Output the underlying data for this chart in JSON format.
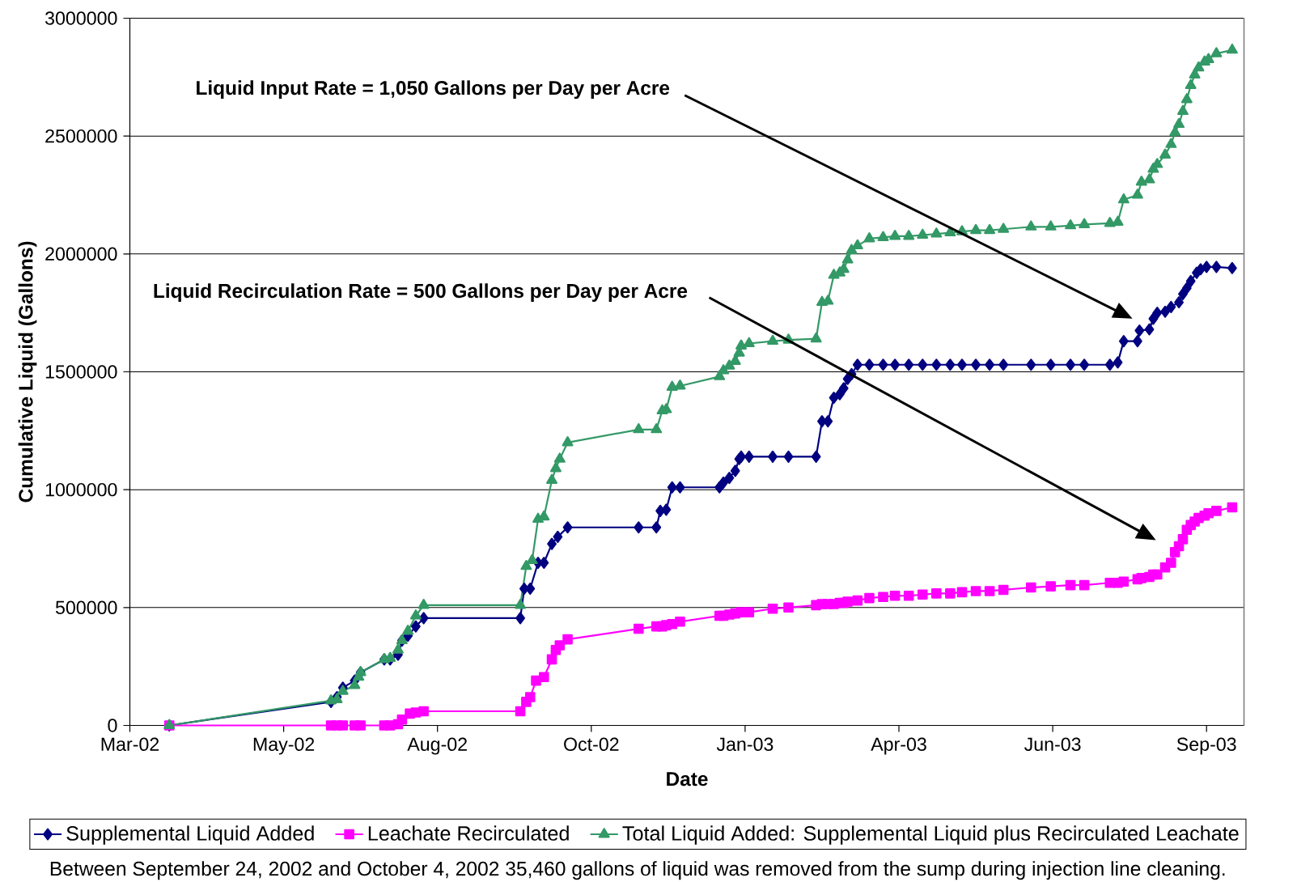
{
  "chart_data": {
    "type": "line",
    "xlabel": "Date",
    "ylabel": "Cumulative Liquid (Gallons)",
    "xlim": [
      "2002-03-10",
      "2003-09-26"
    ],
    "xticks": [
      {
        "value": "2002-03-10",
        "label": "Mar-02"
      },
      {
        "value": "2002-05-27",
        "label": "May-02"
      },
      {
        "value": "2002-08-13",
        "label": "Aug-02"
      },
      {
        "value": "2002-10-30",
        "label": "Oct-02"
      },
      {
        "value": "2003-01-16",
        "label": "Jan-03"
      },
      {
        "value": "2003-04-04",
        "label": "Apr-03"
      },
      {
        "value": "2003-06-21",
        "label": "Jun-03"
      },
      {
        "value": "2003-09-07",
        "label": "Sep-03"
      }
    ],
    "ylim": [
      0,
      3000000
    ],
    "yticks": [
      0,
      500000,
      1000000,
      1500000,
      2000000,
      2500000,
      3000000
    ],
    "grid": "y",
    "legend": "bottom",
    "line_style": "solid",
    "series": [
      {
        "name": "Supplemental Liquid Added",
        "color": "#000080",
        "marker": "diamond",
        "x": [
          "2002-03-30",
          "2002-06-20",
          "2002-06-23",
          "2002-06-26",
          "2002-07-02",
          "2002-07-05",
          "2002-07-17",
          "2002-07-20",
          "2002-07-24",
          "2002-07-26",
          "2002-07-29",
          "2002-08-02",
          "2002-08-06",
          "2002-09-24",
          "2002-09-26",
          "2002-09-29",
          "2002-10-03",
          "2002-10-06",
          "2002-10-10",
          "2002-10-13",
          "2002-10-18",
          "2002-11-23",
          "2002-12-02",
          "2002-12-04",
          "2002-12-07",
          "2002-12-10",
          "2002-12-14",
          "2003-01-03",
          "2003-01-05",
          "2003-01-08",
          "2003-01-11",
          "2003-01-13",
          "2003-01-14",
          "2003-01-18",
          "2003-01-30",
          "2003-02-07",
          "2003-02-21",
          "2003-02-24",
          "2003-02-27",
          "2003-03-02",
          "2003-03-05",
          "2003-03-07",
          "2003-03-09",
          "2003-03-11",
          "2003-03-14",
          "2003-03-20",
          "2003-03-27",
          "2003-04-02",
          "2003-04-09",
          "2003-04-16",
          "2003-04-23",
          "2003-04-30",
          "2003-05-06",
          "2003-05-13",
          "2003-05-20",
          "2003-05-27",
          "2003-06-10",
          "2003-06-20",
          "2003-06-30",
          "2003-07-07",
          "2003-07-20",
          "2003-07-24",
          "2003-07-27",
          "2003-08-03",
          "2003-08-04",
          "2003-08-09",
          "2003-08-11",
          "2003-08-13",
          "2003-08-17",
          "2003-08-20",
          "2003-08-24",
          "2003-08-26",
          "2003-08-28",
          "2003-08-30",
          "2003-09-02",
          "2003-09-04",
          "2003-09-07",
          "2003-09-12",
          "2003-09-20"
        ],
        "values": [
          0,
          100000,
          120000,
          160000,
          190000,
          225000,
          280000,
          280000,
          300000,
          360000,
          380000,
          420000,
          455000,
          455000,
          580000,
          580000,
          690000,
          690000,
          770000,
          800000,
          840000,
          840000,
          840000,
          910000,
          915000,
          1010000,
          1010000,
          1010000,
          1030000,
          1050000,
          1080000,
          1130000,
          1140000,
          1140000,
          1140000,
          1140000,
          1140000,
          1290000,
          1290000,
          1390000,
          1405000,
          1430000,
          1470000,
          1490000,
          1530000,
          1530000,
          1530000,
          1530000,
          1530000,
          1530000,
          1530000,
          1530000,
          1530000,
          1530000,
          1530000,
          1530000,
          1530000,
          1530000,
          1530000,
          1530000,
          1530000,
          1540000,
          1630000,
          1630000,
          1675000,
          1680000,
          1725000,
          1750000,
          1755000,
          1775000,
          1795000,
          1830000,
          1855000,
          1885000,
          1920000,
          1935000,
          1945000,
          1945000,
          1940000
        ]
      },
      {
        "name": "Leachate Recirculated",
        "color": "#ff00ff",
        "marker": "square",
        "x": [
          "2002-03-30",
          "2002-06-20",
          "2002-06-23",
          "2002-06-26",
          "2002-07-02",
          "2002-07-05",
          "2002-07-17",
          "2002-07-20",
          "2002-07-24",
          "2002-07-26",
          "2002-07-30",
          "2002-08-02",
          "2002-08-06",
          "2002-09-24",
          "2002-09-27",
          "2002-09-29",
          "2002-10-02",
          "2002-10-06",
          "2002-10-10",
          "2002-10-12",
          "2002-10-14",
          "2002-10-18",
          "2002-11-23",
          "2002-12-02",
          "2002-12-05",
          "2002-12-07",
          "2002-12-10",
          "2002-12-14",
          "2003-01-03",
          "2003-01-05",
          "2003-01-08",
          "2003-01-11",
          "2003-01-14",
          "2003-01-18",
          "2003-01-30",
          "2003-02-07",
          "2003-02-21",
          "2003-02-24",
          "2003-02-27",
          "2003-03-02",
          "2003-03-05",
          "2003-03-07",
          "2003-03-09",
          "2003-03-14",
          "2003-03-20",
          "2003-03-27",
          "2003-04-02",
          "2003-04-09",
          "2003-04-16",
          "2003-04-23",
          "2003-04-30",
          "2003-05-06",
          "2003-05-13",
          "2003-05-20",
          "2003-05-27",
          "2003-06-10",
          "2003-06-20",
          "2003-06-30",
          "2003-07-07",
          "2003-07-20",
          "2003-07-24",
          "2003-07-27",
          "2003-08-03",
          "2003-08-05",
          "2003-08-09",
          "2003-08-11",
          "2003-08-13",
          "2003-08-17",
          "2003-08-20",
          "2003-08-22",
          "2003-08-24",
          "2003-08-26",
          "2003-08-28",
          "2003-08-30",
          "2003-09-01",
          "2003-09-03",
          "2003-09-06",
          "2003-09-08",
          "2003-09-12",
          "2003-09-20"
        ],
        "values": [
          0,
          0,
          0,
          0,
          0,
          0,
          0,
          0,
          5000,
          25000,
          50000,
          55000,
          60000,
          60000,
          100000,
          120000,
          190000,
          205000,
          280000,
          320000,
          340000,
          365000,
          410000,
          420000,
          420000,
          425000,
          430000,
          440000,
          465000,
          465000,
          470000,
          475000,
          480000,
          480000,
          495000,
          500000,
          510000,
          515000,
          515000,
          515000,
          520000,
          520000,
          525000,
          530000,
          540000,
          545000,
          550000,
          550000,
          555000,
          560000,
          560000,
          565000,
          570000,
          570000,
          575000,
          585000,
          590000,
          595000,
          595000,
          605000,
          605000,
          610000,
          620000,
          625000,
          630000,
          640000,
          640000,
          670000,
          690000,
          735000,
          760000,
          790000,
          830000,
          850000,
          865000,
          880000,
          890000,
          900000,
          910000,
          925000
        ]
      },
      {
        "name": "Total Liquid Added:  Supplemental Liquid plus Recirculated Leachate",
        "color": "#339966",
        "marker": "triangle",
        "x": [
          "2002-03-30",
          "2002-06-20",
          "2002-06-23",
          "2002-06-26",
          "2002-07-02",
          "2002-07-04",
          "2002-07-05",
          "2002-07-17",
          "2002-07-20",
          "2002-07-24",
          "2002-07-26",
          "2002-07-29",
          "2002-08-02",
          "2002-08-06",
          "2002-09-24",
          "2002-09-27",
          "2002-09-30",
          "2002-10-03",
          "2002-10-06",
          "2002-10-10",
          "2002-10-12",
          "2002-10-14",
          "2002-10-18",
          "2002-11-23",
          "2002-12-02",
          "2002-12-05",
          "2002-12-07",
          "2002-12-10",
          "2002-12-14",
          "2003-01-03",
          "2003-01-05",
          "2003-01-08",
          "2003-01-11",
          "2003-01-13",
          "2003-01-14",
          "2003-01-18",
          "2003-01-30",
          "2003-02-07",
          "2003-02-21",
          "2003-02-24",
          "2003-02-27",
          "2003-03-02",
          "2003-03-05",
          "2003-03-07",
          "2003-03-09",
          "2003-03-11",
          "2003-03-14",
          "2003-03-20",
          "2003-03-27",
          "2003-04-02",
          "2003-04-09",
          "2003-04-16",
          "2003-04-23",
          "2003-04-30",
          "2003-05-06",
          "2003-05-13",
          "2003-05-20",
          "2003-05-27",
          "2003-06-10",
          "2003-06-20",
          "2003-06-30",
          "2003-07-07",
          "2003-07-20",
          "2003-07-24",
          "2003-07-27",
          "2003-08-03",
          "2003-08-05",
          "2003-08-09",
          "2003-08-11",
          "2003-08-13",
          "2003-08-17",
          "2003-08-20",
          "2003-08-22",
          "2003-08-24",
          "2003-08-26",
          "2003-08-28",
          "2003-08-30",
          "2003-09-01",
          "2003-09-03",
          "2003-09-06",
          "2003-09-08",
          "2003-09-12",
          "2003-09-20"
        ],
        "values": [
          0,
          105000,
          110000,
          145000,
          170000,
          205000,
          225000,
          280000,
          285000,
          320000,
          360000,
          400000,
          465000,
          510000,
          510000,
          675000,
          700000,
          875000,
          885000,
          1040000,
          1090000,
          1130000,
          1200000,
          1255000,
          1255000,
          1335000,
          1340000,
          1435000,
          1440000,
          1480000,
          1505000,
          1525000,
          1545000,
          1580000,
          1610000,
          1620000,
          1630000,
          1635000,
          1640000,
          1795000,
          1800000,
          1910000,
          1920000,
          1935000,
          1975000,
          2015000,
          2035000,
          2065000,
          2070000,
          2075000,
          2075000,
          2080000,
          2085000,
          2090000,
          2095000,
          2100000,
          2100000,
          2105000,
          2115000,
          2115000,
          2120000,
          2125000,
          2130000,
          2135000,
          2230000,
          2250000,
          2305000,
          2315000,
          2360000,
          2380000,
          2420000,
          2465000,
          2515000,
          2550000,
          2605000,
          2655000,
          2715000,
          2760000,
          2790000,
          2815000,
          2825000,
          2850000,
          2865000
        ]
      }
    ],
    "annotations": [
      "Liquid Input Rate = 1,050 Gallons per Day per Acre",
      "Liquid Recirculation Rate = 500 Gallons per Day per Acre",
      "Between September 24, 2002 and October 4, 2002  35,460 gallons of liquid was removed from the sump during  injection line cleaning."
    ]
  }
}
